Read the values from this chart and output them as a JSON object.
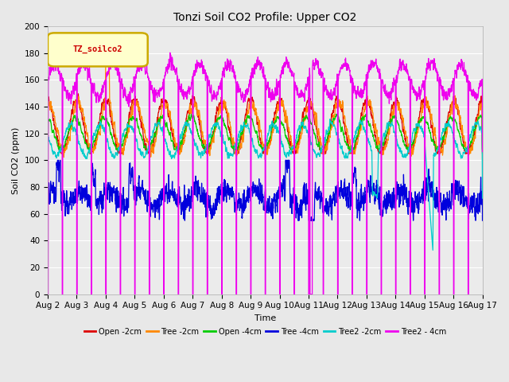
{
  "title": "Tonzi Soil CO2 Profile: Upper CO2",
  "xlabel": "Time",
  "ylabel": "Soil CO2 (ppm)",
  "ylim": [
    0,
    200
  ],
  "yticks": [
    0,
    20,
    40,
    60,
    80,
    100,
    120,
    140,
    160,
    180,
    200
  ],
  "fig_bg": "#e8e8e8",
  "axes_bg": "#ebebeb",
  "grid_color": "#ffffff",
  "legend_label": "TZ_soilco2",
  "legend_box_color": "#ffffcc",
  "legend_box_edge": "#ccaa00",
  "legend_text_color": "#cc0000",
  "xtick_labels": [
    "Aug 2",
    "Aug 3",
    "Aug 4",
    "Aug 5",
    "Aug 6",
    "Aug 7",
    "Aug 8",
    "Aug 9",
    "Aug 10",
    "Aug 11",
    "Aug 12",
    "Aug 13",
    "Aug 14",
    "Aug 15",
    "Aug 16",
    "Aug 17"
  ],
  "series_colors": {
    "Open -2cm": "#dd0000",
    "Tree -2cm": "#ff8800",
    "Open -4cm": "#00cc00",
    "Tree -4cm": "#0000dd",
    "Tree2 -2cm": "#00cccc",
    "Tree2 - 4cm": "#ee00ee"
  }
}
